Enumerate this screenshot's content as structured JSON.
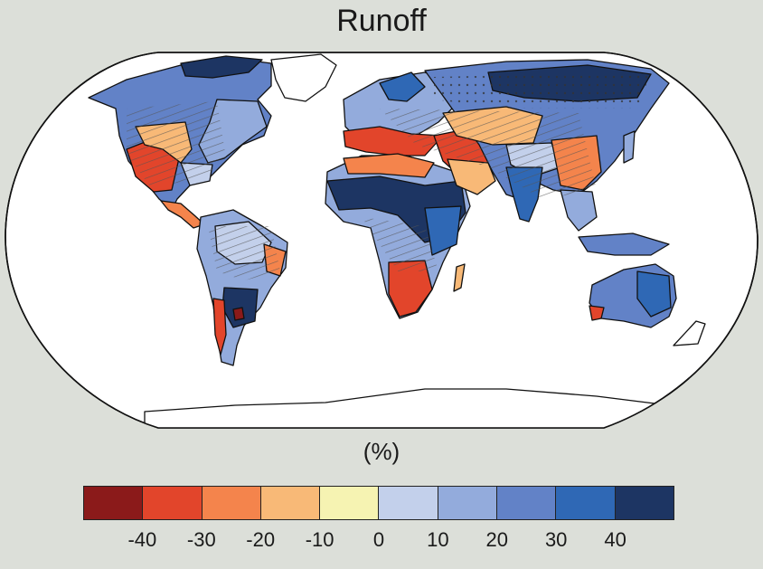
{
  "title": "Runoff",
  "units": "(%)",
  "colorbar": {
    "colors": [
      "#8b1a1a",
      "#e2452b",
      "#f4844c",
      "#f8b977",
      "#f6f3b2",
      "#c3d0eb",
      "#93abdc",
      "#6282c7",
      "#2f68b5",
      "#1d3563"
    ],
    "ticks": [
      "-40",
      "-30",
      "-20",
      "-10",
      "0",
      "10",
      "20",
      "30",
      "40"
    ]
  },
  "legend": {
    "hatching": "diagonal lines",
    "stippling": "dots"
  },
  "map_colors": {
    "ocean": "#ffffff",
    "coast": "#111111",
    "background": "#dcdfd9"
  }
}
